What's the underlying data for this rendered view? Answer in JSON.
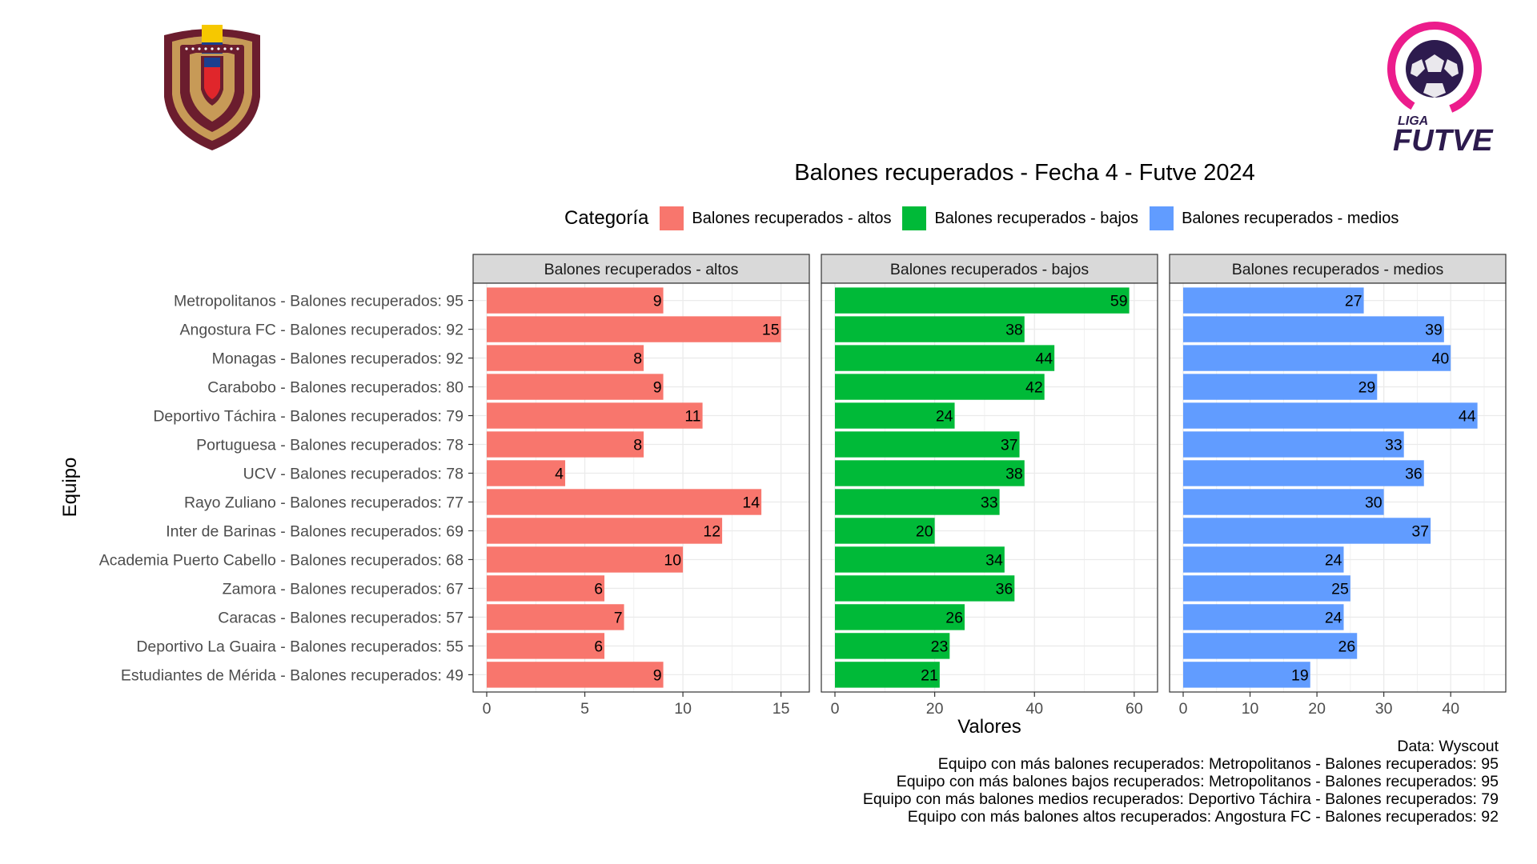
{
  "logos": {
    "left": {
      "name": "fvf-crest"
    },
    "right": {
      "name": "liga-futve-logo",
      "text_top": "LIGA",
      "text_bottom": "FUTVE"
    }
  },
  "colors": {
    "altos": "#F8766D",
    "bajos": "#00BA38",
    "medios": "#619CFF",
    "strip": "#D9D9D9",
    "grid": "#EBEBEB"
  },
  "chart_data": {
    "type": "bar",
    "orientation": "horizontal",
    "title": "Balones recuperados - Fecha 4 - Futve 2024",
    "xlabel": "Valores",
    "ylabel": "Equipo",
    "legend": {
      "title": "Categoría",
      "position": "top",
      "items": [
        "Balones recuperados - altos",
        "Balones recuperados - bajos",
        "Balones recuperados - medios"
      ]
    },
    "categories": [
      "Metropolitanos - Balones recuperados: 95",
      "Angostura FC - Balones recuperados: 92",
      "Monagas - Balones recuperados: 92",
      "Carabobo - Balones recuperados: 80",
      "Deportivo Táchira - Balones recuperados: 79",
      "Portuguesa - Balones recuperados: 78",
      "UCV - Balones recuperados: 78",
      "Rayo Zuliano - Balones recuperados: 77",
      "Inter de Barinas - Balones recuperados: 69",
      "Academia Puerto Cabello - Balones recuperados: 68",
      "Zamora - Balones recuperados: 67",
      "Caracas - Balones recuperados: 57",
      "Deportivo La Guaira - Balones recuperados: 55",
      "Estudiantes de Mérida - Balones recuperados: 49"
    ],
    "grid": true,
    "facets": [
      {
        "name": "Balones recuperados - altos",
        "color": "#F8766D",
        "xlim": [
          0,
          15.75
        ],
        "ticks": [
          0,
          5,
          10,
          15
        ],
        "values": [
          9,
          15,
          8,
          9,
          11,
          8,
          4,
          14,
          12,
          10,
          6,
          7,
          6,
          9
        ]
      },
      {
        "name": "Balones recuperados - bajos",
        "color": "#00BA38",
        "xlim": [
          0,
          61.95
        ],
        "ticks": [
          0,
          20,
          40,
          60
        ],
        "values": [
          59,
          38,
          44,
          42,
          24,
          37,
          38,
          33,
          20,
          34,
          36,
          26,
          23,
          21
        ]
      },
      {
        "name": "Balones recuperados - medios",
        "color": "#619CFF",
        "xlim": [
          0,
          46.2
        ],
        "ticks": [
          0,
          10,
          20,
          30,
          40
        ],
        "values": [
          27,
          39,
          40,
          29,
          44,
          33,
          36,
          30,
          37,
          24,
          25,
          24,
          26,
          19
        ]
      }
    ]
  },
  "captions": [
    "Data: Wyscout ",
    "Equipo con más balones recuperados: Metropolitanos - Balones recuperados: 95",
    "Equipo con más balones bajos recuperados: Metropolitanos - Balones recuperados: 95",
    "Equipo con más balones medios recuperados: Deportivo Táchira - Balones recuperados: 79",
    "Equipo con más balones altos recuperados: Angostura FC - Balones recuperados: 92"
  ]
}
